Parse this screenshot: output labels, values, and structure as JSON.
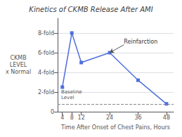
{
  "chart_data": {
    "type": "line",
    "title": "Kinetics of CKMB Release After AMI",
    "xlabel": "Time After Onset of Chest Pains, Hours",
    "ylabel": "CKMB\nLEVEL\nx Normal",
    "x": [
      4,
      8,
      12,
      24,
      36,
      48
    ],
    "values": [
      2.5,
      8.0,
      5.0,
      6.0,
      3.2,
      0.8
    ],
    "marker": "square",
    "xlim": [
      2,
      51
    ],
    "xticks": [
      4,
      8,
      12,
      24,
      36,
      48
    ],
    "ylim": [
      0,
      9.5
    ],
    "yticks": [
      0,
      {
        "value": 2,
        "label": "2-fold"
      },
      {
        "value": 4,
        "label": "4-fold"
      },
      {
        "value": 6,
        "label": "6-fold"
      },
      {
        "value": 8,
        "label": "8-fold"
      }
    ],
    "grid": true,
    "baseline": {
      "y": 0.8,
      "label": "Baseline\nLevel",
      "line_style": "dashed"
    },
    "annotations": [
      {
        "text": "Reinfarction",
        "x": 30,
        "y": 6.8,
        "arrow_to": [
          24,
          6.0
        ]
      }
    ]
  }
}
